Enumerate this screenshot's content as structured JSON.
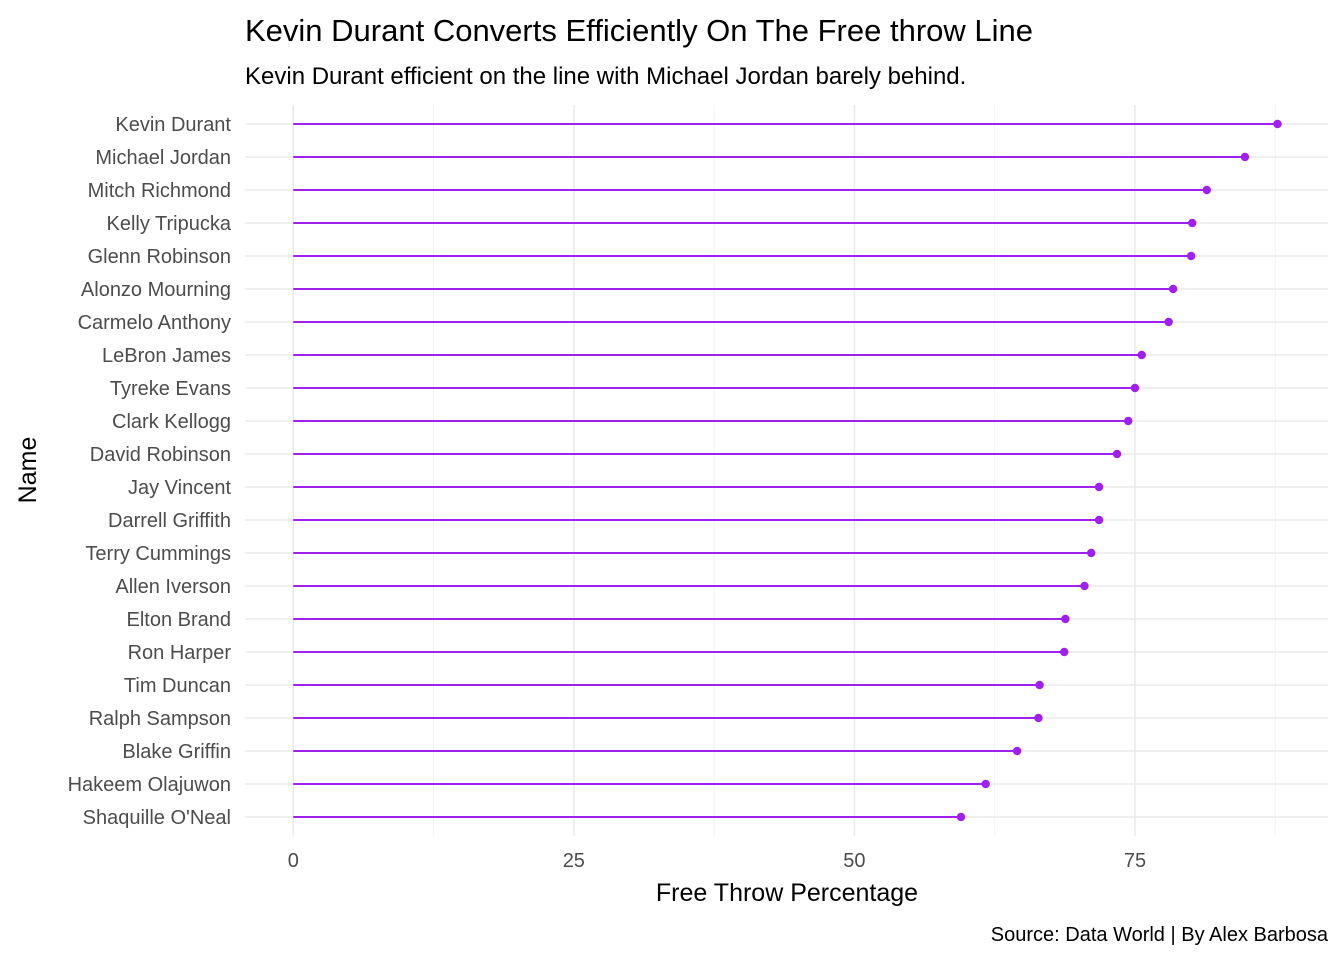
{
  "chart_data": {
    "type": "lollipop",
    "title": "Kevin Durant Converts Efficiently On The Free throw Line",
    "subtitle": "Kevin Durant efficient on the line with Michael Jordan barely behind.",
    "xlabel": "Free Throw Percentage",
    "ylabel": "Name",
    "caption": "Source: Data World | By Alex Barbosa",
    "xlim": [
      -4.3,
      92.2
    ],
    "x_ticks": [
      0,
      25,
      50,
      75
    ],
    "grid": true,
    "colors": {
      "segment": "#a020f0",
      "point": "#a020f0",
      "grid": "#ebebeb"
    },
    "categories": [
      "Kevin Durant",
      "Michael Jordan",
      "Mitch Richmond",
      "Kelly Tripucka",
      "Glenn Robinson",
      "Alonzo Mourning",
      "Carmelo Anthony",
      "LeBron James",
      "Tyreke Evans",
      "Clark Kellogg",
      "David Robinson",
      "Jay Vincent",
      "Darrell Griffith",
      "Terry Cummings",
      "Allen Iverson",
      "Elton Brand",
      "Ron Harper",
      "Tim Duncan",
      "Ralph Sampson",
      "Blake Griffin",
      "Hakeem Olajuwon",
      "Shaquille O'Neal"
    ],
    "values": [
      87.7,
      84.8,
      81.4,
      80.1,
      80.0,
      78.4,
      78.0,
      75.6,
      75.0,
      74.4,
      73.4,
      71.8,
      71.8,
      71.1,
      70.5,
      68.8,
      68.7,
      66.5,
      66.4,
      64.5,
      61.7,
      59.5
    ]
  }
}
